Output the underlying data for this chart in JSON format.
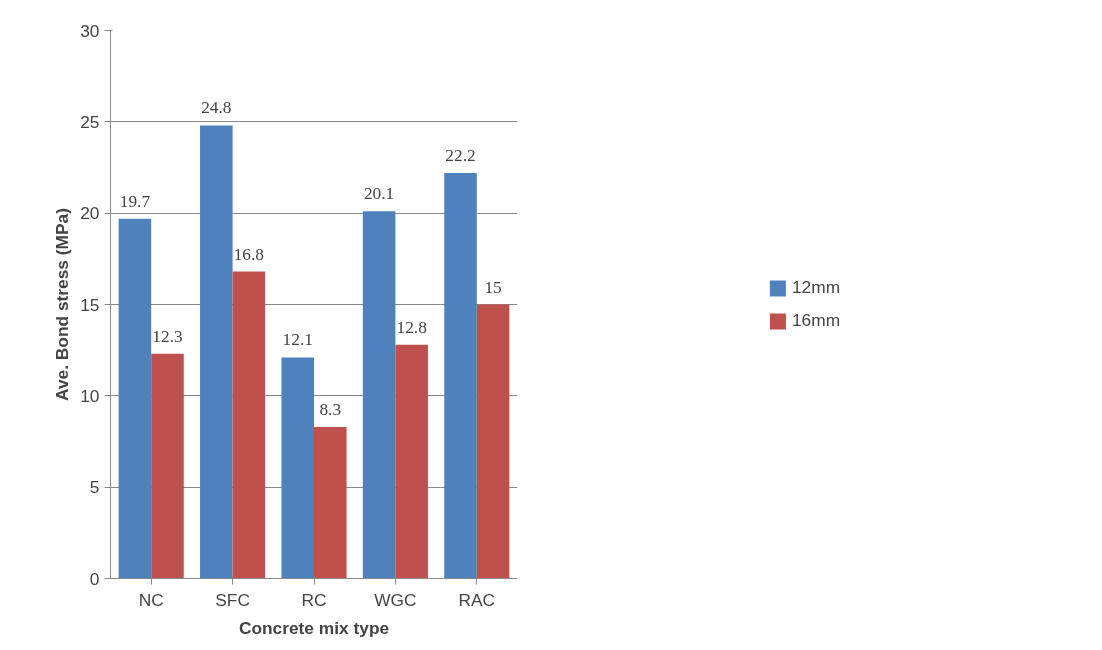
{
  "chart_data": {
    "type": "bar",
    "xlabel": "Concrete mix type",
    "ylabel": "Ave. Bond stress (MPa)",
    "categories": [
      "NC",
      "SFC",
      "RC",
      "WGC",
      "RAC"
    ],
    "series": [
      {
        "name": "12mm",
        "color": "#4f81bd",
        "values": [
          19.7,
          24.8,
          12.1,
          20.1,
          22.2
        ]
      },
      {
        "name": "16mm",
        "color": "#c0504d",
        "values": [
          12.3,
          16.8,
          8.3,
          12.8,
          15
        ]
      }
    ],
    "ylim": [
      0,
      30
    ],
    "yticks": [
      0,
      5,
      10,
      15,
      20,
      25,
      30
    ],
    "grid": "y",
    "legend": "right",
    "data_labels": true
  }
}
